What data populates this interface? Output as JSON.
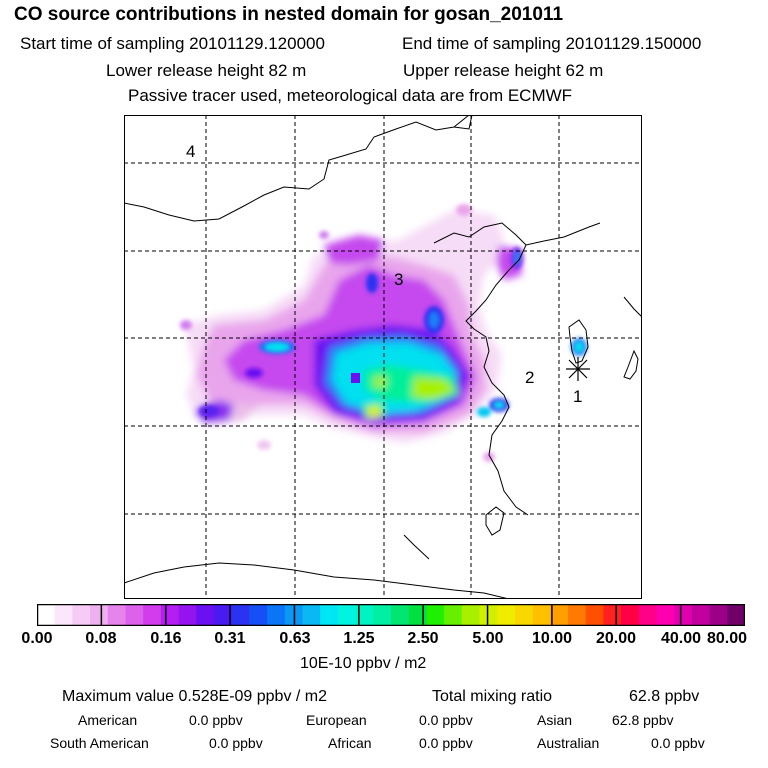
{
  "header": {
    "title": "CO  source contributions in nested domain for gosan_201011",
    "start_label": "Start time of sampling 20101129.120000",
    "end_label": "End time of sampling 20101129.150000",
    "lower_label": "Lower release height   82 m",
    "upper_label": "Upper release height   62 m",
    "info": "Passive tracer used, meteorological data are from ECMWF"
  },
  "map": {
    "markers": [
      {
        "label": "1"
      },
      {
        "label": "2"
      },
      {
        "label": "3"
      },
      {
        "label": "4"
      }
    ]
  },
  "colorbar": {
    "ticks": [
      "0.00",
      "0.08",
      "0.16",
      "0.31",
      "0.63",
      "1.25",
      "2.50",
      "5.00",
      "10.00",
      "20.00",
      "40.00",
      "80.00"
    ],
    "colors": [
      "#ffffff",
      "#fbe6fb",
      "#f6ccf6",
      "#efb0ef",
      "#e585ec",
      "#dd62eb",
      "#d23ced",
      "#b41ef0",
      "#9414ef",
      "#6a10f2",
      "#4a1af2",
      "#2c32f2",
      "#1450f5",
      "#0a76f5",
      "#0b98f5",
      "#0ab8f3",
      "#00e6f4",
      "#00f4df",
      "#00f3c2",
      "#00efa2",
      "#00e670",
      "#00e040",
      "#20f000",
      "#66f000",
      "#a8f000",
      "#d0f000",
      "#f0ec00",
      "#f8d800",
      "#ffc000",
      "#ffa000",
      "#ff7a00",
      "#ff5000",
      "#ff2020",
      "#ff0044",
      "#ff0088",
      "#ff00b0",
      "#e000b0",
      "#c0009c",
      "#9c0088",
      "#700068"
    ],
    "units": "10E-10 ppbv / m2"
  },
  "stats": {
    "max_label": "Maximum value  0.528E-09 ppbv / m2",
    "total_label": "Total mixing ratio",
    "total_value": "62.8 ppbv",
    "sources": [
      {
        "name": "American",
        "value": "0.0 ppbv"
      },
      {
        "name": "European",
        "value": "0.0 ppbv"
      },
      {
        "name": "Asian",
        "value": "62.8 ppbv"
      },
      {
        "name": "South American",
        "value": "0.0 ppbv"
      },
      {
        "name": "African",
        "value": "0.0 ppbv"
      },
      {
        "name": "Australian",
        "value": "0.0 ppbv"
      }
    ]
  }
}
